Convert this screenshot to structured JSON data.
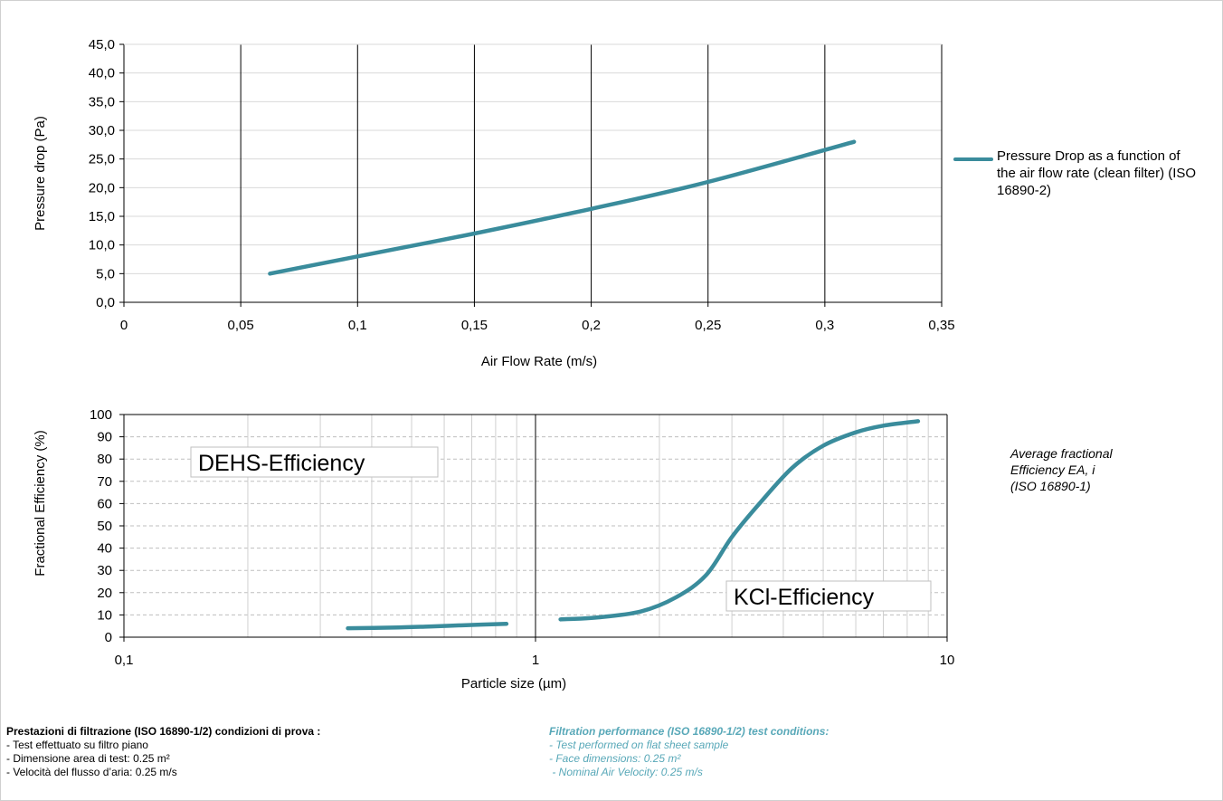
{
  "chart_data": [
    {
      "type": "line",
      "x": [
        0.0625,
        0.1,
        0.15,
        0.2,
        0.25,
        0.3125
      ],
      "series": [
        {
          "name": "Pressure Drop as a function of the air flow rate (clean filter) (ISO 16890-2)",
          "y": [
            5.0,
            8.0,
            12.0,
            16.3,
            21.0,
            28.0
          ]
        }
      ],
      "xlabel": "Air Flow Rate (m/s)",
      "ylabel": "Pressure drop (Pa)",
      "xlim": [
        0,
        0.35
      ],
      "ylim": [
        0,
        45
      ],
      "x_tick_labels": [
        "0",
        "0,05",
        "0,1",
        "0,15",
        "0,2",
        "0,25",
        "0,3",
        "0,35"
      ],
      "y_tick_labels": [
        "0,0",
        "5,0",
        "10,0",
        "15,0",
        "20,0",
        "25,0",
        "30,0",
        "35,0",
        "40,0",
        "45,0"
      ],
      "grid": "vertical major lines",
      "legend_position": "right",
      "series_color": "#3a8c9c"
    },
    {
      "type": "line",
      "x_scale": "log",
      "series": [
        {
          "name": "DEHS-Efficiency",
          "x": [
            0.35,
            0.45,
            0.55,
            0.7,
            0.85
          ],
          "y": [
            4,
            4.3,
            4.8,
            5.5,
            6
          ]
        },
        {
          "name": "KCl-Efficiency",
          "x": [
            1.15,
            1.4,
            1.8,
            2.2,
            2.6,
            3.0,
            3.5,
            4.2,
            5.0,
            6.0,
            7.0,
            8.5
          ],
          "y": [
            8,
            8.8,
            11.5,
            18,
            28,
            45,
            60,
            76,
            86,
            92,
            95,
            97
          ]
        }
      ],
      "xlabel": "Particle size (µm)",
      "ylabel": "Fractional Efficiency (%)",
      "xlim": [
        0.1,
        10
      ],
      "ylim": [
        0,
        100
      ],
      "x_tick_labels": [
        "0,1",
        "1",
        "10"
      ],
      "y_tick_labels": [
        "0",
        "10",
        "20",
        "30",
        "40",
        "50",
        "60",
        "70",
        "80",
        "90",
        "100"
      ],
      "grid": "dashed horizontal lines, log vertical lines",
      "annotations": [
        "DEHS-Efficiency",
        "KCl-Efficiency"
      ],
      "series_color": "#3a8c9c"
    }
  ],
  "legend_chart1": "Pressure Drop as a function of the air flow rate (clean filter) (ISO 16890-2)",
  "side_note": "Average fractional\nEfficiency EA, i\n(ISO 16890-1)",
  "conditions_it": {
    "heading": "Prestazioni di filtrazione (ISO 16890-1/2) condizioni di prova :",
    "lines": [
      "- Test effettuato su filtro piano",
      "- Dimensione area di test: 0.25 m²",
      "- Velocità del flusso d’aria: 0.25 m/s"
    ]
  },
  "conditions_en": {
    "heading": "Filtration performance (ISO 16890-1/2) test conditions:",
    "lines": [
      "- Test performed on flat sheet sample",
      "- Face dimensions: 0.25 m²",
      " - Nominal Air Velocity: 0.25 m/s"
    ]
  }
}
